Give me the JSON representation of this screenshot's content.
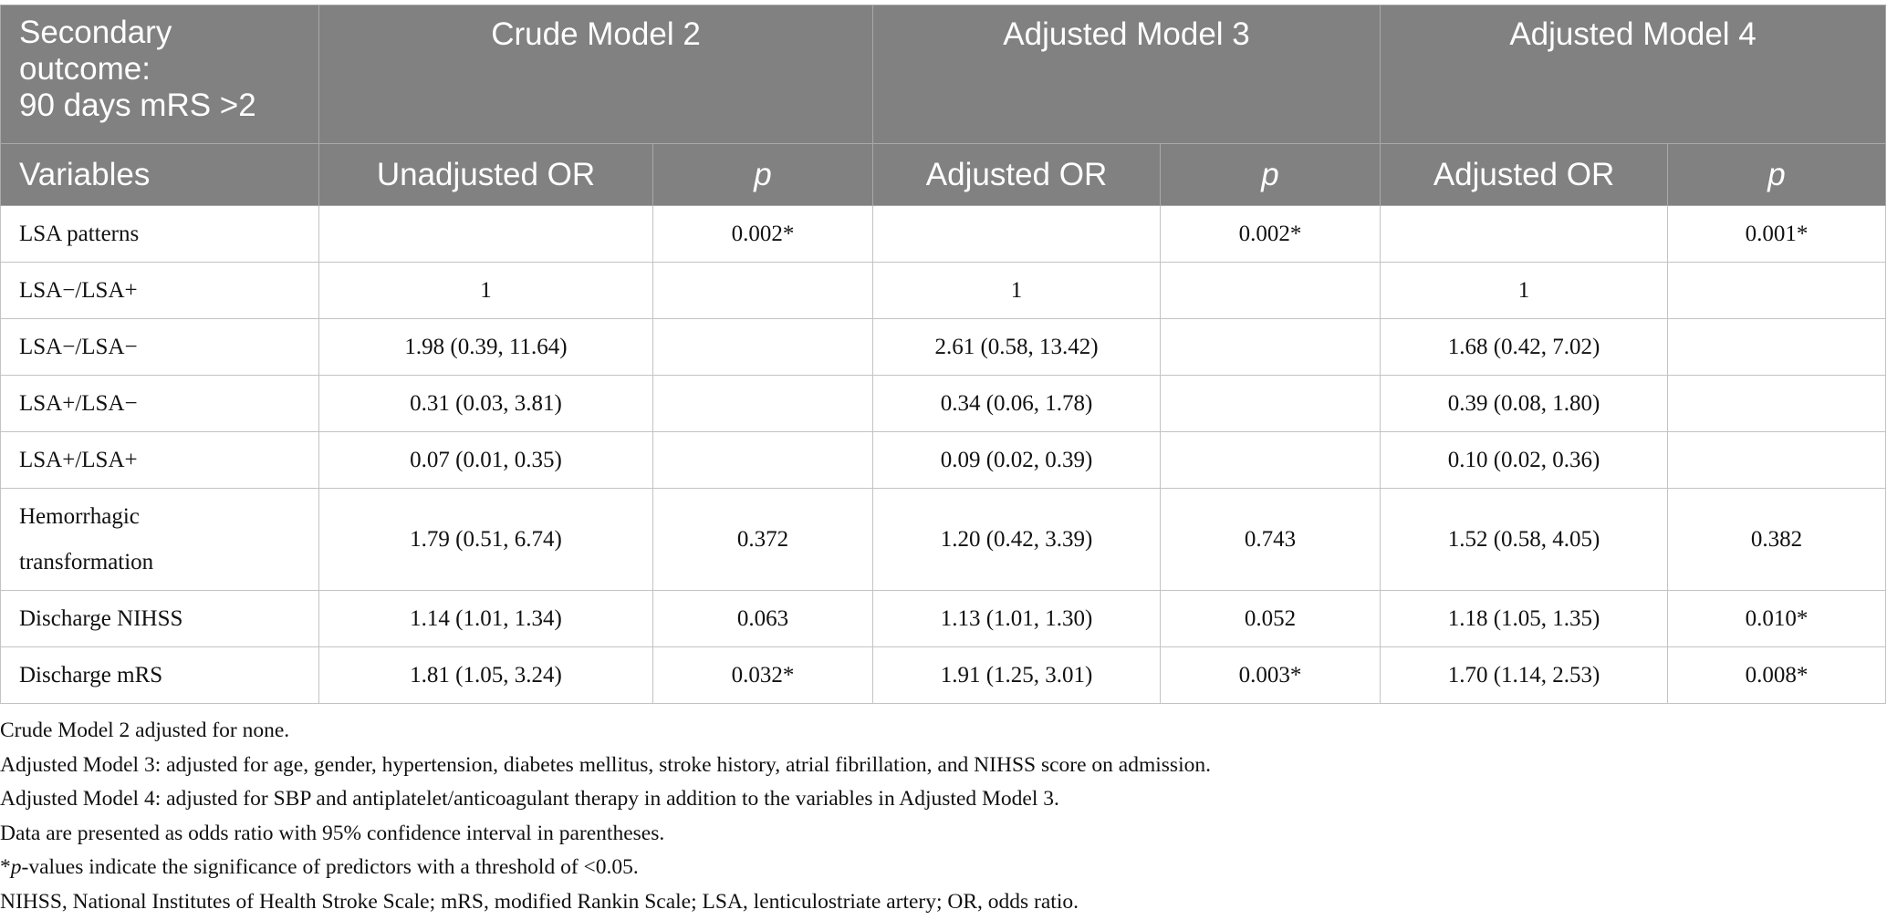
{
  "table": {
    "outcome_title": [
      "Secondary",
      "outcome:",
      "90 days mRS >2"
    ],
    "model_headers": [
      "Crude Model 2",
      "Adjusted Model 3",
      "Adjusted Model 4"
    ],
    "variables_header": "Variables",
    "sub_headers": [
      "Unadjusted OR",
      "p",
      "Adjusted OR",
      "p",
      "Adjusted OR",
      "p"
    ],
    "rows": [
      {
        "label": "LSA patterns",
        "c": [
          "",
          "0.002*",
          "",
          "0.002*",
          "",
          "0.001*"
        ]
      },
      {
        "label": "LSA−/LSA+",
        "c": [
          "1",
          "",
          "1",
          "",
          "1",
          ""
        ]
      },
      {
        "label": "LSA−/LSA−",
        "c": [
          "1.98 (0.39, 11.64)",
          "",
          "2.61 (0.58, 13.42)",
          "",
          "1.68 (0.42, 7.02)",
          ""
        ]
      },
      {
        "label": "LSA+/LSA−",
        "c": [
          "0.31 (0.03, 3.81)",
          "",
          "0.34 (0.06, 1.78)",
          "",
          "0.39 (0.08, 1.80)",
          ""
        ]
      },
      {
        "label": "LSA+/LSA+",
        "c": [
          "0.07 (0.01, 0.35)",
          "",
          "0.09 (0.02, 0.39)",
          "",
          "0.10 (0.02, 0.36)",
          ""
        ]
      },
      {
        "label": [
          "Hemorrhagic",
          "transformation"
        ],
        "c": [
          "1.79 (0.51, 6.74)",
          "0.372",
          "1.20 (0.42, 3.39)",
          "0.743",
          "1.52 (0.58, 4.05)",
          "0.382"
        ]
      },
      {
        "label": "Discharge NIHSS",
        "c": [
          "1.14 (1.01, 1.34)",
          "0.063",
          "1.13 (1.01, 1.30)",
          "0.052",
          "1.18 (1.05, 1.35)",
          "0.010*"
        ]
      },
      {
        "label": "Discharge mRS",
        "c": [
          "1.81 (1.05, 3.24)",
          "0.032*",
          "1.91 (1.25, 3.01)",
          "0.003*",
          "1.70 (1.14, 2.53)",
          "0.008*"
        ]
      }
    ]
  },
  "notes": {
    "crude": "Crude Model 2 adjusted for none.",
    "model3": "Adjusted Model 3: adjusted for age, gender, hypertension, diabetes mellitus, stroke history, atrial fibrillation, and NIHSS score on admission.",
    "model4": "Adjusted Model 4: adjusted for SBP and antiplatelet/anticoagulant therapy in addition to the variables in Adjusted Model 3.",
    "data": "Data are presented as odds ratio with 95% confidence interval in parentheses.",
    "pvalue_star": "*",
    "pvalue_p": "p",
    "pvalue_rest": "-values indicate the significance of predictors with a threshold of <0.05.",
    "abbrev": "NIHSS, National Institutes of Health Stroke Scale; mRS, modified Rankin Scale; LSA, lenticulostriate artery; OR, odds ratio."
  }
}
